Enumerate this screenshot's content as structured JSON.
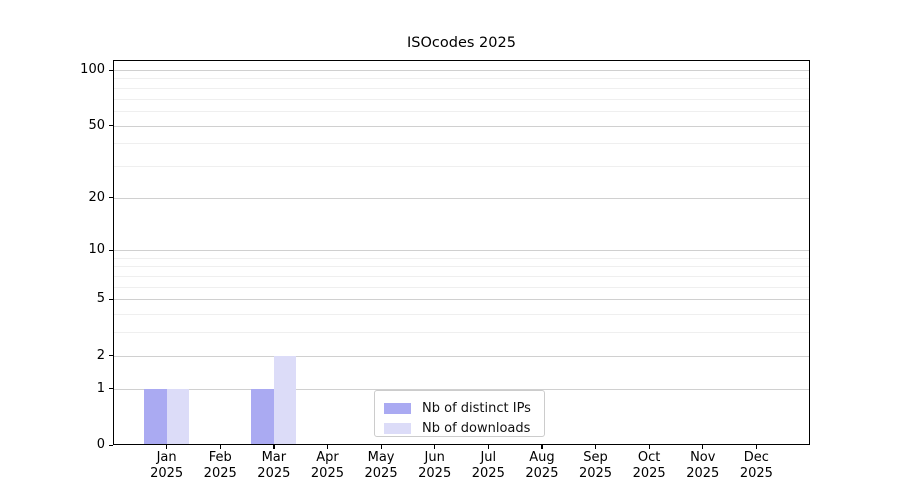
{
  "chart_data": {
    "type": "bar",
    "title": "ISOcodes 2025",
    "categories": [
      "Jan",
      "Feb",
      "Mar",
      "Apr",
      "May",
      "Jun",
      "Jul",
      "Aug",
      "Sep",
      "Oct",
      "Nov",
      "Dec"
    ],
    "x_year_label": "2025",
    "series": [
      {
        "name": "Nb of distinct IPs",
        "color": "#aaaaf2",
        "values": [
          1,
          0,
          1,
          0,
          0,
          0,
          0,
          0,
          0,
          0,
          0,
          0
        ]
      },
      {
        "name": "Nb of downloads",
        "color": "#dcdcf8",
        "values": [
          1,
          0,
          2,
          0,
          0,
          0,
          0,
          0,
          0,
          0,
          0,
          0
        ]
      }
    ],
    "y_axis": {
      "scale": "log1p",
      "major_ticks": [
        0,
        1,
        2,
        5,
        10,
        20,
        50,
        100
      ],
      "minor_gridlines": [
        3,
        4,
        6,
        7,
        8,
        9,
        30,
        40,
        60,
        70,
        80,
        90
      ],
      "range": [
        0,
        100
      ]
    },
    "legend_position": "lower center",
    "grid": true,
    "colors": {
      "major_grid": "#d0d0d0",
      "minor_grid": "#efefef",
      "axis": "#000000",
      "background": "#ffffff"
    }
  }
}
